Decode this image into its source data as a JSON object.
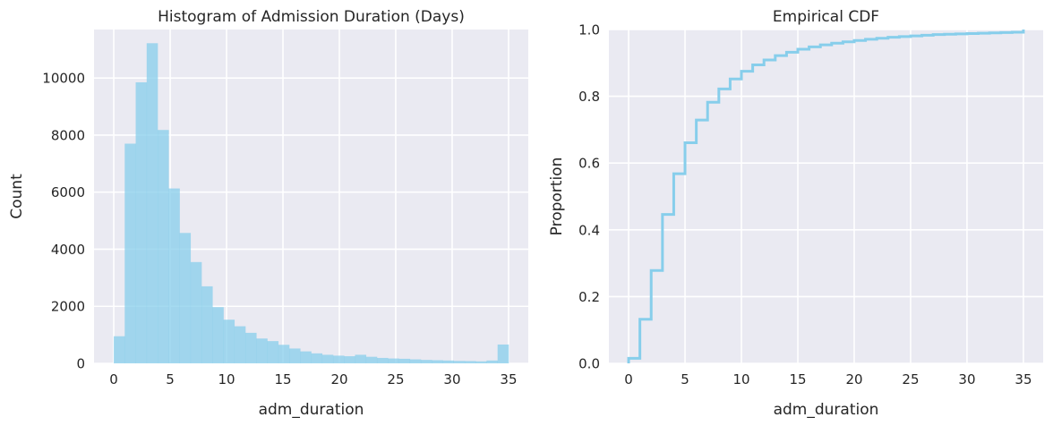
{
  "chart_data": [
    {
      "type": "bar",
      "title": "Histogram of Admission Duration (Days)",
      "xlabel": "adm_duration",
      "ylabel": "Count",
      "xlim": [
        -1.75,
        36.75
      ],
      "ylim": [
        0,
        11700
      ],
      "xticks": [
        "0",
        "5",
        "10",
        "15",
        "20",
        "25",
        "30",
        "35"
      ],
      "yticks": [
        "0",
        "2000",
        "4000",
        "6000",
        "8000",
        "10000"
      ],
      "bin_edges": [
        0,
        0.972,
        1.944,
        2.917,
        3.889,
        4.861,
        5.833,
        6.806,
        7.778,
        8.75,
        9.722,
        10.694,
        11.667,
        12.639,
        13.611,
        14.583,
        15.556,
        16.528,
        17.5,
        18.472,
        19.444,
        20.417,
        21.389,
        22.361,
        23.333,
        24.306,
        25.278,
        26.25,
        27.222,
        28.194,
        29.167,
        30.139,
        31.111,
        32.083,
        33.056,
        34.028,
        35
      ],
      "values": [
        950,
        7700,
        9850,
        11220,
        8180,
        6130,
        4570,
        3550,
        2700,
        1970,
        1530,
        1300,
        1070,
        870,
        780,
        650,
        520,
        420,
        350,
        300,
        270,
        250,
        300,
        230,
        190,
        170,
        160,
        140,
        120,
        110,
        100,
        85,
        80,
        70,
        100,
        660
      ],
      "grid": true,
      "color": "#87ceeb"
    },
    {
      "type": "line",
      "step": true,
      "title": "Empirical CDF",
      "xlabel": "adm_duration",
      "ylabel": "Proportion",
      "xlim": [
        -1.75,
        36.75
      ],
      "ylim": [
        0,
        1
      ],
      "xticks": [
        "0",
        "5",
        "10",
        "15",
        "20",
        "25",
        "30",
        "35"
      ],
      "yticks": [
        "0.0",
        "0.2",
        "0.4",
        "0.6",
        "0.8",
        "1.0"
      ],
      "x": [
        0,
        1,
        2,
        3,
        4,
        5,
        6,
        7,
        8,
        9,
        10,
        11,
        12,
        13,
        14,
        15,
        16,
        17,
        18,
        19,
        20,
        21,
        22,
        23,
        24,
        25,
        26,
        27,
        28,
        29,
        30,
        31,
        32,
        33,
        34,
        35
      ],
      "y": [
        0.015,
        0.132,
        0.278,
        0.446,
        0.568,
        0.661,
        0.729,
        0.782,
        0.822,
        0.852,
        0.875,
        0.894,
        0.909,
        0.922,
        0.932,
        0.941,
        0.948,
        0.954,
        0.959,
        0.963,
        0.967,
        0.971,
        0.974,
        0.977,
        0.979,
        0.981,
        0.983,
        0.985,
        0.986,
        0.987,
        0.988,
        0.989,
        0.99,
        0.991,
        0.992,
        1.0
      ],
      "grid": true,
      "color": "#87ceeb"
    }
  ]
}
